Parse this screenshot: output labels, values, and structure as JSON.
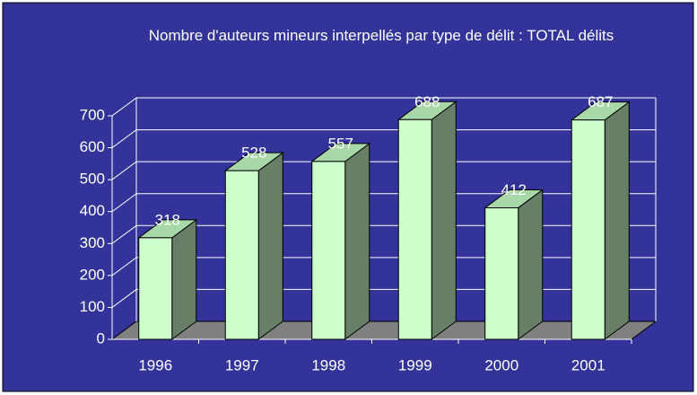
{
  "chart_data": {
    "type": "bar3d",
    "title": "Nombre d'auteurs mineurs interpellés par type de délit : TOTAL délits",
    "categories": [
      "1996",
      "1997",
      "1998",
      "1999",
      "2000",
      "2001"
    ],
    "values": [
      318,
      528,
      557,
      688,
      412,
      687
    ],
    "color": "#ccffcc",
    "ylim": [
      0,
      700
    ],
    "yticks": [
      0,
      100,
      200,
      300,
      400,
      500,
      600,
      700
    ],
    "grid": true
  }
}
